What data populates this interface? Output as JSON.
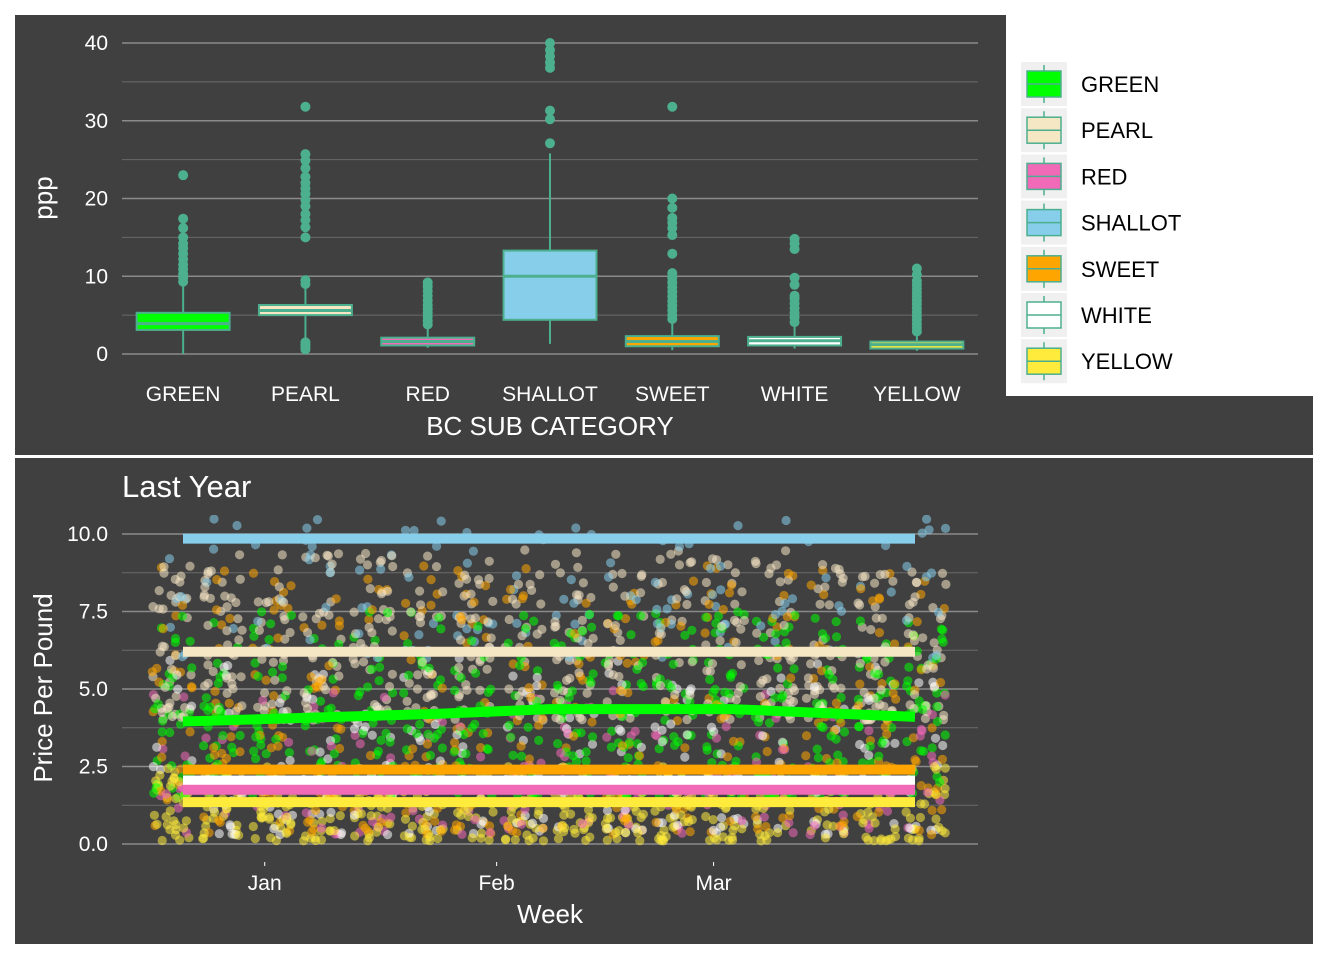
{
  "colors": {
    "panel_bg": "#404040",
    "grid": "#7a7a7a",
    "box_outline": "#4caf8e",
    "GREEN": "#00ff00",
    "PEARL": "#f5e6c4",
    "RED": "#f06ab8",
    "SHALLOT": "#87ceeb",
    "SWEET": "#ffa500",
    "WHITE": "#ffffff",
    "YELLOW": "#ffeb3b"
  },
  "chart_data": [
    {
      "type": "box",
      "title": "",
      "xlabel": "BC SUB CATEGORY",
      "ylabel": "ppp",
      "ylim": [
        0,
        40
      ],
      "yticks": [
        "0",
        "10",
        "20",
        "30",
        "40"
      ],
      "categories": [
        "GREEN",
        "PEARL",
        "RED",
        "SHALLOT",
        "SWEET",
        "WHITE",
        "YELLOW"
      ],
      "boxes": [
        {
          "name": "GREEN",
          "min": 0,
          "q1": 3.1,
          "median": 3.9,
          "q3": 5.3,
          "max": 9.0,
          "outliers": [
            9.3,
            9.8,
            10.3,
            10.9,
            11.5,
            12.2,
            12.9,
            13.6,
            14.2,
            15.0,
            16.2,
            17.4,
            23.0
          ]
        },
        {
          "name": "PEARL",
          "min": 0.6,
          "q1": 5.0,
          "median": 5.6,
          "q3": 6.3,
          "max": 8.5,
          "outliers": [
            0.6,
            0.9,
            1.2,
            1.5,
            9.0,
            9.5,
            15.0,
            16.3,
            17.2,
            18.0,
            19.0,
            19.8,
            20.6,
            21.3,
            22.0,
            22.8,
            23.9,
            24.9,
            25.7,
            31.8
          ]
        },
        {
          "name": "RED",
          "min": 0.8,
          "q1": 1.1,
          "median": 1.6,
          "q3": 2.1,
          "max": 3.5,
          "outliers": [
            3.8,
            4.3,
            4.8,
            5.3,
            5.8,
            6.3,
            6.9,
            7.5,
            8.1,
            8.7,
            9.2
          ]
        },
        {
          "name": "SHALLOT",
          "min": 1.3,
          "q1": 4.4,
          "median": 10.0,
          "q3": 13.3,
          "max": 25.8,
          "outliers": [
            27.1,
            30.2,
            31.3,
            36.8,
            37.5,
            38.3,
            39.1,
            40.0
          ]
        },
        {
          "name": "SWEET",
          "min": 0.5,
          "q1": 1.0,
          "median": 1.6,
          "q3": 2.3,
          "max": 4.2,
          "outliers": [
            4.5,
            5.0,
            5.6,
            6.2,
            6.8,
            7.4,
            8.0,
            8.6,
            9.2,
            9.8,
            10.4,
            12.9,
            15.3,
            16.2,
            16.9,
            17.5,
            18.8,
            20.0,
            31.8
          ]
        },
        {
          "name": "WHITE",
          "min": 0.7,
          "q1": 1.1,
          "median": 1.7,
          "q3": 2.2,
          "max": 3.8,
          "outliers": [
            4.1,
            4.7,
            5.3,
            5.9,
            6.5,
            7.1,
            7.5,
            8.9,
            9.8,
            13.5,
            14.2,
            14.8
          ]
        },
        {
          "name": "YELLOW",
          "min": 0.4,
          "q1": 0.7,
          "median": 1.2,
          "q3": 1.6,
          "max": 2.6,
          "outliers": [
            2.9,
            3.4,
            3.9,
            4.4,
            4.9,
            5.4,
            5.9,
            6.4,
            6.9,
            7.4,
            7.9,
            8.4,
            8.9,
            9.4,
            10.2,
            11.0
          ]
        }
      ],
      "legend": {
        "position": "right",
        "entries": [
          "GREEN",
          "PEARL",
          "RED",
          "SHALLOT",
          "SWEET",
          "WHITE",
          "YELLOW"
        ]
      },
      "grid": true
    },
    {
      "type": "scatter",
      "title": "Last Year",
      "xlabel": "Week",
      "ylabel": "Price Per Pound",
      "ylim": [
        0,
        10.5
      ],
      "yticks": [
        "0.0",
        "2.5",
        "5.0",
        "7.5",
        "10.0"
      ],
      "x_start": "2023-12-18",
      "x_end": "2024-03-31",
      "xticks": [
        {
          "label": "Jan",
          "date": "2024-01-01"
        },
        {
          "label": "Feb",
          "date": "2024-02-01"
        },
        {
          "label": "Mar",
          "date": "2024-03-01"
        }
      ],
      "series": [
        {
          "name": "SHALLOT",
          "mean_line": [
            [
              0,
              9.85
            ],
            [
              1,
              9.85
            ]
          ],
          "spread": [
            6.0,
            10.5
          ],
          "weight": 0.06
        },
        {
          "name": "PEARL",
          "mean_line": [
            [
              0,
              6.2
            ],
            [
              1,
              6.2
            ]
          ],
          "spread": [
            4.0,
            9.5
          ],
          "weight": 0.22
        },
        {
          "name": "GREEN",
          "mean_line": [
            [
              0,
              3.95
            ],
            [
              0.35,
              4.2
            ],
            [
              0.5,
              4.35
            ],
            [
              0.75,
              4.35
            ],
            [
              1,
              4.1
            ]
          ],
          "spread": [
            1.5,
            7.5
          ],
          "weight": 0.22
        },
        {
          "name": "SWEET",
          "mean_line": [
            [
              0,
              2.4
            ],
            [
              1,
              2.4
            ]
          ],
          "spread": [
            0.3,
            9.0
          ],
          "weight": 0.17
        },
        {
          "name": "WHITE",
          "mean_line": [
            [
              0,
              2.05
            ],
            [
              1,
              2.05
            ]
          ],
          "spread": [
            0.3,
            6.0
          ],
          "weight": 0.08
        },
        {
          "name": "RED",
          "mean_line": [
            [
              0,
              1.75
            ],
            [
              1,
              1.75
            ]
          ],
          "spread": [
            0.3,
            5.0
          ],
          "weight": 0.06
        },
        {
          "name": "YELLOW",
          "mean_line": [
            [
              0,
              1.35
            ],
            [
              1,
              1.35
            ]
          ],
          "spread": [
            0.1,
            2.5
          ],
          "weight": 0.19
        }
      ],
      "grid": true
    }
  ]
}
